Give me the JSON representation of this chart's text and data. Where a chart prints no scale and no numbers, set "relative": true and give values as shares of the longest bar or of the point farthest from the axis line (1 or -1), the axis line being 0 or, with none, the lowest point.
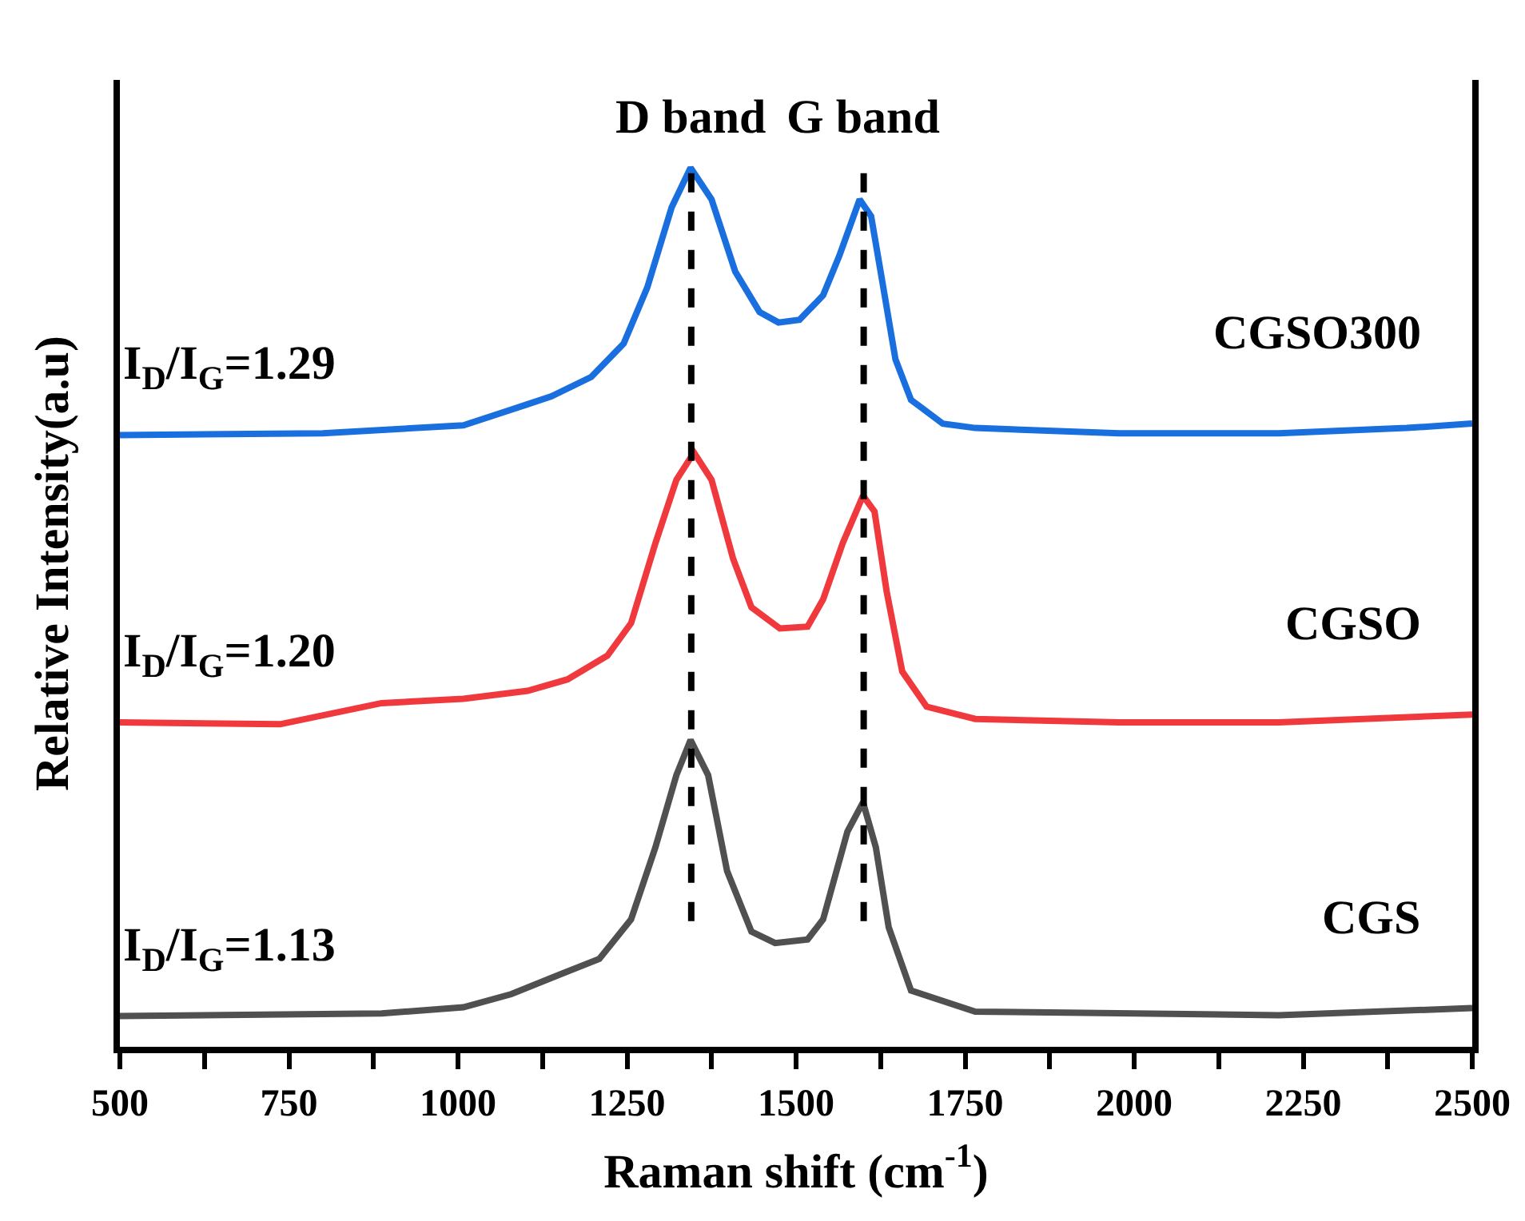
{
  "chart_data": {
    "type": "line",
    "relative": true,
    "xlabel": "Raman shift (cm$^{-1}$)",
    "ylabel": "Relative Intensity(a.u)",
    "xlim": [
      500,
      2500
    ],
    "xticks": [
      500,
      {
        "value": 625,
        "label": null
      },
      750,
      {
        "value": 875,
        "label": null
      },
      1000,
      {
        "value": 1125,
        "label": null
      },
      1250,
      {
        "value": 1375,
        "label": null
      },
      1500,
      {
        "value": 1625,
        "label": null
      },
      1750,
      {
        "value": 1875,
        "label": null
      },
      2000,
      {
        "value": 2125,
        "label": null
      },
      2250,
      {
        "value": 2375,
        "label": null
      },
      2500
    ],
    "grid": false,
    "legend": false,
    "marker": "none",
    "line_style": "solid",
    "series": [
      {
        "name": "CGSO300",
        "color": "#1a6fdf",
        "x": [
          500,
          800,
          1008,
          1103,
          1138,
          1197,
          1245,
          1280,
          1316,
          1344,
          1375,
          1410,
          1446,
          1474,
          1505,
          1540,
          1564,
          1594,
          1611,
          1627,
          1647,
          1670,
          1717,
          1765,
          1978,
          2214,
          2403,
          2500
        ],
        "values": [
          0.696,
          0.698,
          0.707,
          0.731,
          0.74,
          0.762,
          0.8,
          0.864,
          0.955,
          1.0,
          0.964,
          0.882,
          0.836,
          0.824,
          0.827,
          0.855,
          0.9,
          0.964,
          0.945,
          0.873,
          0.782,
          0.736,
          0.709,
          0.704,
          0.698,
          0.698,
          0.704,
          0.709
        ]
      },
      {
        "name": "CGSO",
        "color": "#f0393d",
        "x": [
          500,
          737,
          887,
          1008,
          1103,
          1162,
          1221,
          1256,
          1292,
          1323,
          1349,
          1375,
          1407,
          1434,
          1476,
          1517,
          1540,
          1569,
          1599,
          1616,
          1634,
          1657,
          1693,
          1765,
          1978,
          2214,
          2500
        ],
        "values": [
          0.369,
          0.367,
          0.391,
          0.396,
          0.405,
          0.418,
          0.445,
          0.482,
          0.573,
          0.645,
          0.676,
          0.645,
          0.555,
          0.5,
          0.476,
          0.478,
          0.509,
          0.573,
          0.627,
          0.609,
          0.518,
          0.427,
          0.387,
          0.373,
          0.369,
          0.369,
          0.378
        ]
      },
      {
        "name": "CGS",
        "color": "#505050",
        "x": [
          500,
          887,
          1008,
          1079,
          1150,
          1209,
          1256,
          1292,
          1323,
          1344,
          1370,
          1398,
          1434,
          1469,
          1517,
          1540,
          1576,
          1599,
          1618,
          1637,
          1670,
          1765,
          2214,
          2500
        ],
        "values": [
          0.035,
          0.038,
          0.045,
          0.06,
          0.082,
          0.1,
          0.145,
          0.227,
          0.309,
          0.349,
          0.309,
          0.2,
          0.131,
          0.118,
          0.122,
          0.145,
          0.245,
          0.278,
          0.227,
          0.136,
          0.064,
          0.04,
          0.036,
          0.044
        ]
      }
    ],
    "ref_lines": [
      {
        "axis": "x",
        "value": 1345,
        "label": "D band",
        "color": "#000000",
        "line_style": "dashed"
      },
      {
        "axis": "x",
        "value": 1600,
        "label": "G band",
        "color": "#000000",
        "line_style": "dashed"
      }
    ],
    "annotations": [
      "I$_{D}$/I$_{G}$=1.29",
      "I$_{D}$/I$_{G}$=1.20",
      "I$_{D}$/I$_{G}$=1.13"
    ]
  }
}
